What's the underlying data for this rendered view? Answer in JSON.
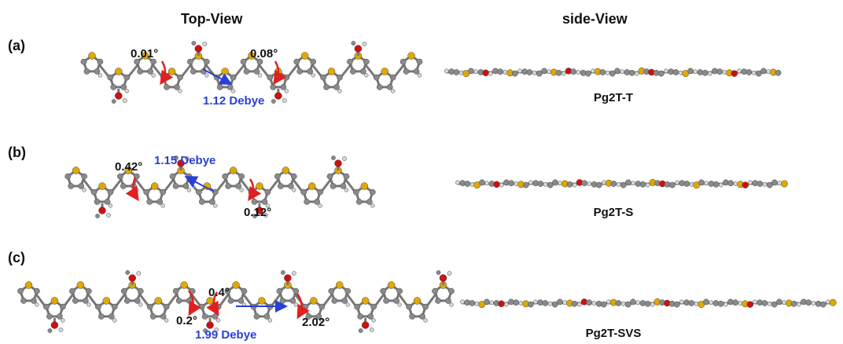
{
  "headers": {
    "top_view": "Top-View",
    "side_view": "side-View"
  },
  "panels": [
    {
      "label": "(a)",
      "name": "Pg2T-T",
      "dipole": "1.12 Debye",
      "angles": [
        "0.01°",
        "0.08°"
      ]
    },
    {
      "label": "(b)",
      "name": "Pg2T-S",
      "dipole": "1.15 Debye",
      "angles": [
        "0.42°",
        "0.12°"
      ]
    },
    {
      "label": "(c)",
      "name": "Pg2T-SVS",
      "dipole": "1.99 Debye",
      "angles": [
        "0.4°",
        "0.2°",
        "2.02°"
      ]
    }
  ],
  "colors": {
    "carbon": "#8a8a8a",
    "sulfur": "#e0a800",
    "oxygen": "#d01010",
    "hydrogen": "#d8d8d8",
    "torsion_arrow": "#e02020",
    "dipole_arrow": "#2a3fd6"
  }
}
